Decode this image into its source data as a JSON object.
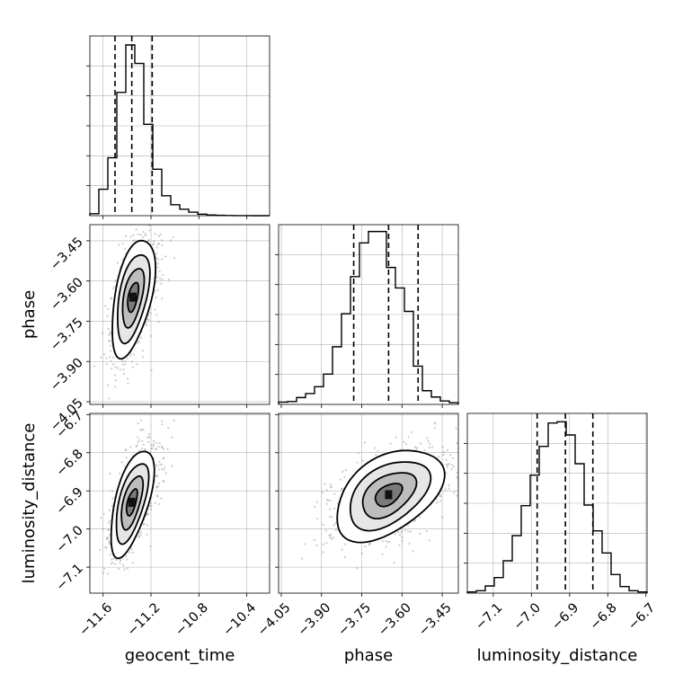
{
  "chart_data": {
    "type": "corner",
    "parameters": [
      "geocent_time",
      "phase",
      "luminosity_distance"
    ],
    "grid": true,
    "ranges": {
      "geocent_time": [
        -11.71,
        -10.21
      ],
      "phase": [
        -4.06,
        -3.39
      ],
      "luminosity_distance": [
        -7.168,
        -6.697
      ]
    },
    "ticks": {
      "geocent_time": {
        "values": [
          -11.6,
          -11.2,
          -10.8,
          -10.4
        ],
        "labels": [
          "−11.6",
          "−11.2",
          "−10.8",
          "−10.4"
        ]
      },
      "phase": {
        "values": [
          -4.05,
          -3.9,
          -3.75,
          -3.6,
          -3.45
        ],
        "labels": [
          "−4.05",
          "−3.90",
          "−3.75",
          "−3.60",
          "−3.45"
        ]
      },
      "luminosity_distance": {
        "values": [
          -7.1,
          -7.0,
          -6.9,
          -6.8,
          -6.7
        ],
        "labels": [
          "−7.1",
          "−7.0",
          "−6.9",
          "−6.8",
          "−6.7"
        ]
      }
    },
    "histograms": [
      {
        "parameter": "geocent_time",
        "bin_edges": [
          -11.71,
          -11.635,
          -11.56,
          -11.485,
          -11.41,
          -11.335,
          -11.26,
          -11.185,
          -11.11,
          -11.035,
          -10.96,
          -10.885,
          -10.81,
          -10.735,
          -10.66,
          -10.585,
          -10.51,
          -10.435,
          -10.36,
          -10.285,
          -10.21
        ],
        "counts": [
          0.4,
          5.3,
          11.6,
          24.7,
          34.2,
          30.5,
          18.3,
          9.3,
          4.0,
          2.2,
          1.3,
          0.7,
          0.3,
          0.15,
          0.07,
          0.03,
          0.02,
          0.01,
          0.0,
          0.0
        ],
        "ymax": 36.0,
        "quantiles": [
          -11.5,
          -11.36,
          -11.19
        ]
      },
      {
        "parameter": "phase",
        "bin_edges": [
          -4.06,
          -4.0265,
          -3.993,
          -3.9595,
          -3.926,
          -3.8925,
          -3.859,
          -3.8255,
          -3.792,
          -3.7585,
          -3.725,
          -3.6915,
          -3.658,
          -3.6245,
          -3.591,
          -3.5575,
          -3.524,
          -3.4905,
          -3.457,
          -3.4235,
          -3.39
        ],
        "counts": [
          0.4,
          0.5,
          1.2,
          1.9,
          3.1,
          5.3,
          10.1,
          15.9,
          22.4,
          28.3,
          30.3,
          30.3,
          24.0,
          20.4,
          16.3,
          6.7,
          2.4,
          1.3,
          0.6,
          0.3
        ],
        "ymax": 31.5,
        "quantiles": [
          -3.78,
          -3.65,
          -3.54
        ]
      },
      {
        "parameter": "luminosity_distance",
        "bin_edges": [
          -7.168,
          -7.14445,
          -7.1209,
          -7.09735,
          -7.0738,
          -7.05025,
          -7.0267,
          -7.00315,
          -6.9796,
          -6.95605,
          -6.9325,
          -6.90895,
          -6.8854,
          -6.86185,
          -6.8383,
          -6.81475,
          -6.7912,
          -6.76765,
          -6.7441,
          -6.72055,
          -6.697
        ],
        "counts": [
          0.2,
          0.4,
          1.2,
          2.6,
          5.4,
          9.6,
          14.6,
          19.7,
          24.5,
          28.4,
          28.6,
          26.4,
          21.6,
          14.7,
          10.4,
          6.7,
          3.1,
          1.1,
          0.4,
          0.2
        ],
        "ymax": 30.0,
        "quantiles": [
          -6.985,
          -6.911,
          -6.839
        ]
      }
    ],
    "scatter_panels": [
      {
        "x": "geocent_time",
        "y": "phase",
        "x_center": -11.35,
        "y_center": -3.66,
        "x_sigma": 0.09,
        "y_sigma": 0.11,
        "correlation": 0.5,
        "contour_levels": [
          0.5,
          1.0,
          1.5,
          2.0
        ]
      },
      {
        "x": "geocent_time",
        "y": "luminosity_distance",
        "x_center": -11.36,
        "y_center": -6.93,
        "x_sigma": 0.09,
        "y_sigma": 0.07,
        "correlation": 0.6,
        "contour_levels": [
          0.5,
          1.0,
          1.5,
          2.0
        ]
      },
      {
        "x": "phase",
        "y": "luminosity_distance",
        "x_center": -3.65,
        "y_center": -6.91,
        "x_sigma": 0.1,
        "y_sigma": 0.06,
        "correlation": 0.45,
        "contour_levels": [
          0.5,
          1.0,
          1.5,
          2.0
        ]
      }
    ]
  }
}
